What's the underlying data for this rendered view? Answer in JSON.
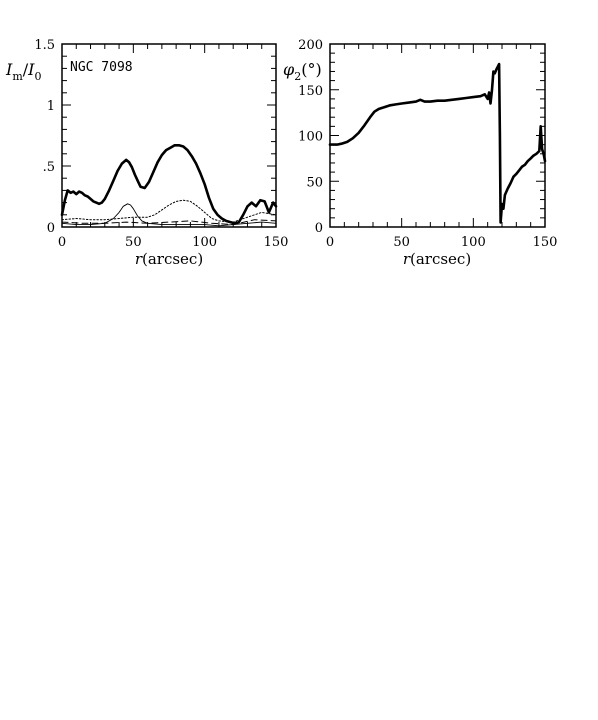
{
  "figure": {
    "background": "#ffffff",
    "ink": "#000000"
  },
  "chart_data": [
    {
      "type": "line",
      "title": "NGC 7098",
      "ylabel": "I_m/I_0",
      "ylabel_parts": {
        "main": "I",
        "sub_m": "m",
        "slash": "/",
        "main2": "I",
        "sub_0": "0"
      },
      "xlabel": "r(arcsec)",
      "xlabel_parts": {
        "var": "r",
        "unit": "(arcsec)"
      },
      "xlim": [
        0,
        150
      ],
      "ylim": [
        0,
        1.5
      ],
      "xticks": [
        0,
        50,
        100,
        150
      ],
      "xtick_labels": [
        "0",
        "50",
        "100",
        "150"
      ],
      "yticks": [
        0,
        0.5,
        1,
        1.5
      ],
      "ytick_labels": [
        "0",
        ".5",
        "1",
        "1.5"
      ],
      "grid": false,
      "series": [
        {
          "style": "thick-solid",
          "x": [
            0,
            2,
            4,
            6,
            8,
            10,
            12,
            14,
            16,
            18,
            20,
            22,
            24,
            26,
            28,
            30,
            33,
            36,
            39,
            42,
            45,
            47,
            49,
            51,
            53,
            55,
            58,
            61,
            64,
            67,
            70,
            73,
            76,
            79,
            82,
            85,
            88,
            91,
            94,
            97,
            100,
            103,
            106,
            109,
            112,
            115,
            118,
            121,
            124,
            127,
            130,
            133,
            136,
            139,
            142,
            145,
            148,
            150
          ],
          "values": [
            0.1,
            0.22,
            0.3,
            0.28,
            0.29,
            0.27,
            0.29,
            0.28,
            0.26,
            0.25,
            0.23,
            0.21,
            0.2,
            0.19,
            0.2,
            0.23,
            0.3,
            0.38,
            0.46,
            0.52,
            0.55,
            0.53,
            0.49,
            0.43,
            0.38,
            0.33,
            0.32,
            0.37,
            0.45,
            0.53,
            0.59,
            0.63,
            0.65,
            0.67,
            0.67,
            0.66,
            0.63,
            0.58,
            0.52,
            0.44,
            0.35,
            0.24,
            0.15,
            0.1,
            0.07,
            0.05,
            0.04,
            0.03,
            0.04,
            0.1,
            0.17,
            0.2,
            0.17,
            0.22,
            0.21,
            0.12,
            0.2,
            0.17
          ]
        },
        {
          "style": "thin-solid",
          "x": [
            0,
            10,
            20,
            30,
            36,
            40,
            43,
            46,
            48,
            50,
            53,
            56,
            60,
            70,
            80,
            90,
            100,
            110,
            120,
            130,
            140,
            150
          ],
          "values": [
            0.03,
            0.02,
            0.02,
            0.03,
            0.07,
            0.12,
            0.17,
            0.19,
            0.18,
            0.15,
            0.09,
            0.05,
            0.03,
            0.02,
            0.02,
            0.02,
            0.02,
            0.01,
            0.02,
            0.03,
            0.04,
            0.03
          ]
        },
        {
          "style": "dotted",
          "x": [
            0,
            10,
            20,
            30,
            40,
            50,
            60,
            65,
            70,
            75,
            80,
            85,
            90,
            95,
            100,
            105,
            110,
            120,
            130,
            140,
            150
          ],
          "values": [
            0.06,
            0.07,
            0.06,
            0.06,
            0.07,
            0.08,
            0.08,
            0.1,
            0.14,
            0.18,
            0.21,
            0.22,
            0.21,
            0.17,
            0.12,
            0.07,
            0.05,
            0.04,
            0.08,
            0.12,
            0.1
          ]
        },
        {
          "style": "dashed",
          "x": [
            0,
            15,
            30,
            45,
            60,
            75,
            90,
            105,
            120,
            135,
            150
          ],
          "values": [
            0.04,
            0.03,
            0.03,
            0.04,
            0.03,
            0.04,
            0.05,
            0.03,
            0.02,
            0.06,
            0.05
          ]
        }
      ]
    },
    {
      "type": "line",
      "ylabel": "φ2(°)",
      "ylabel_parts": {
        "var": "φ",
        "sub": "2",
        "unit": "(°)"
      },
      "xlabel": "r(arcsec)",
      "xlabel_parts": {
        "var": "r",
        "unit": "(arcsec)"
      },
      "xlim": [
        0,
        150
      ],
      "ylim": [
        0,
        200
      ],
      "xticks": [
        0,
        50,
        100,
        150
      ],
      "xtick_labels": [
        "0",
        "50",
        "100",
        "150"
      ],
      "yticks": [
        0,
        50,
        100,
        150,
        200
      ],
      "ytick_labels": [
        "0",
        "50",
        "100",
        "150",
        "200"
      ],
      "grid": false,
      "series": [
        {
          "style": "thick-solid",
          "x": [
            0,
            2,
            5,
            8,
            12,
            16,
            20,
            24,
            28,
            31,
            34,
            38,
            42,
            46,
            50,
            55,
            60,
            63,
            66,
            70,
            75,
            80,
            85,
            90,
            95,
            100,
            105,
            108,
            110,
            111,
            112,
            113,
            114,
            115,
            116,
            117,
            118,
            118.5,
            119,
            120,
            121,
            122,
            124,
            126,
            128,
            130,
            132,
            134,
            136,
            138,
            140,
            142,
            144,
            146,
            147,
            148,
            149,
            150
          ],
          "values": [
            90,
            90,
            90,
            91,
            93,
            97,
            103,
            111,
            120,
            126,
            129,
            131,
            133,
            134,
            135,
            136,
            137,
            139,
            137,
            137,
            138,
            138,
            139,
            140,
            141,
            142,
            143,
            145,
            140,
            147,
            135,
            150,
            170,
            168,
            172,
            175,
            178,
            100,
            5,
            25,
            20,
            35,
            42,
            48,
            55,
            58,
            62,
            66,
            68,
            72,
            75,
            78,
            80,
            83,
            110,
            85,
            80,
            72
          ]
        }
      ]
    }
  ]
}
